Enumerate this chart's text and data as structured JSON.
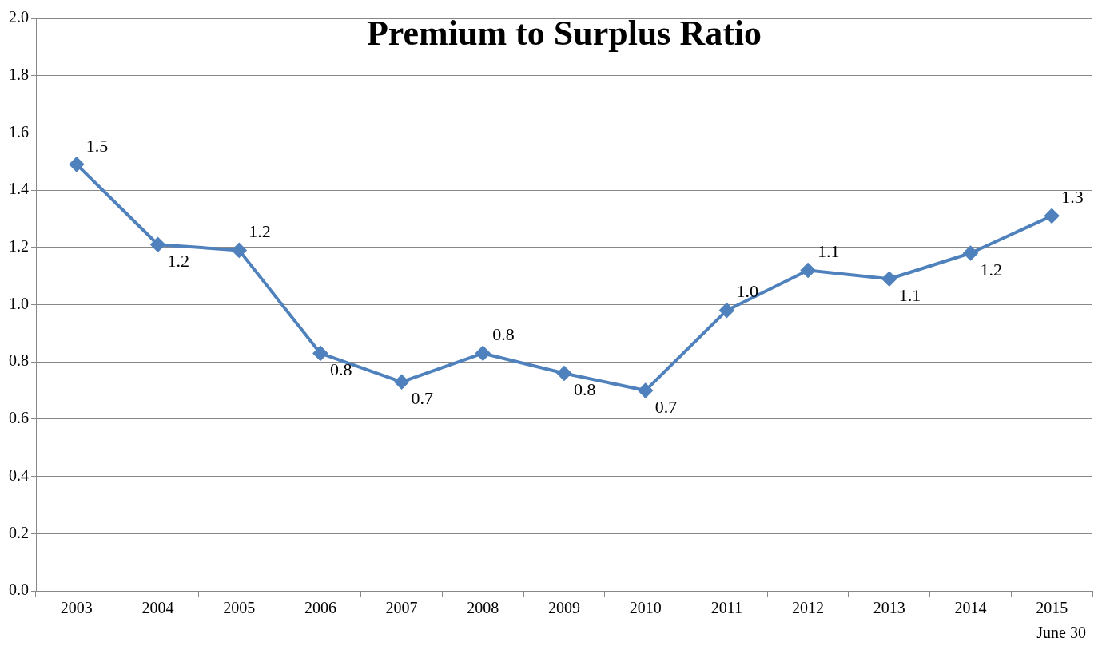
{
  "chart_data": {
    "type": "line",
    "title": "Premium to Surplus Ratio",
    "categories": [
      "2003",
      "2004",
      "2005",
      "2006",
      "2007",
      "2008",
      "2009",
      "2010",
      "2011",
      "2012",
      "2013",
      "2014",
      "2015"
    ],
    "series": [
      {
        "color": "#4f81bd",
        "values": [
          1.49,
          1.21,
          1.19,
          0.83,
          0.73,
          0.83,
          0.76,
          0.7,
          0.98,
          1.12,
          1.09,
          1.18,
          1.31
        ],
        "value_labels": [
          "1.5",
          "1.2",
          "1.2",
          "0.8",
          "0.7",
          "0.8",
          "0.8",
          "0.7",
          "1.0",
          "1.1",
          "1.1",
          "1.2",
          "1.3"
        ]
      }
    ],
    "ylim": [
      0,
      2
    ],
    "yticks": [
      {
        "value": 0,
        "label": "0.0"
      },
      0.2,
      0.4,
      0.6,
      0.8,
      {
        "value": 1,
        "label": "1.0"
      },
      1.2,
      1.4,
      1.6,
      1.8,
      {
        "value": 2,
        "label": "2.0"
      }
    ],
    "grid": "y",
    "legend": false,
    "marker": "diamond",
    "line_style": "solid",
    "annotations": [
      "June 30"
    ]
  }
}
